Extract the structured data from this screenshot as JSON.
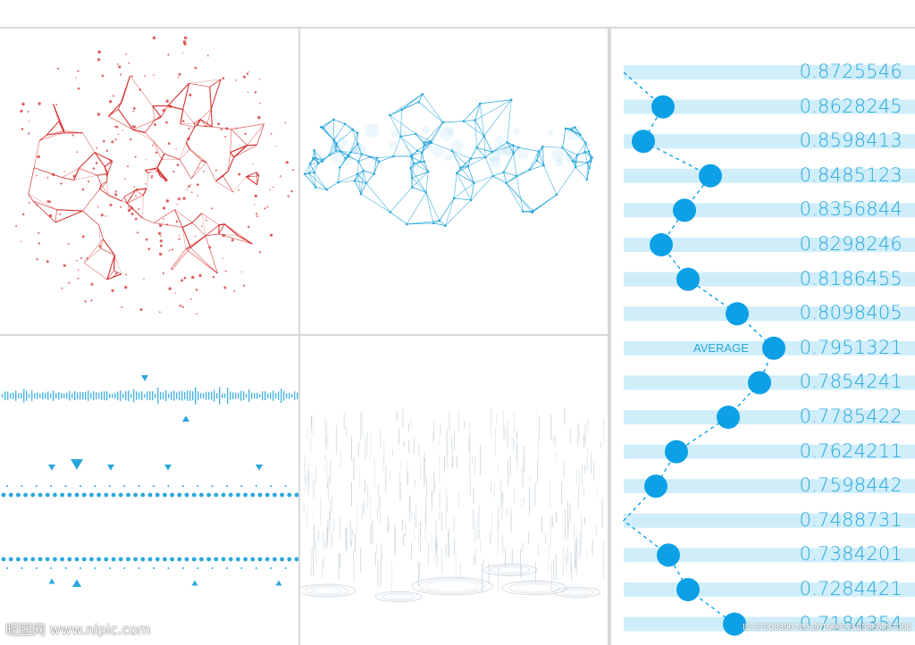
{
  "values": {
    "list": [
      "0.8725546",
      "0.8628245",
      "0.8598413",
      "0.8485123",
      "0.8356844",
      "0.8298246",
      "0.8186455",
      "0.8098405",
      "0.7951321",
      "0.7854241",
      "0.7785422",
      "0.7624211",
      "0.7598442",
      "0.7488731",
      "0.7384201",
      "0.7284421",
      "0.7184354"
    ],
    "average_label": "AVERAGE"
  },
  "watermark": {
    "site": "昵图网 www.nipic.com",
    "id_text": "ID:27008390 NO:20190612165856287000"
  },
  "colors": {
    "red": "#d0201e",
    "cyan": "#2aa7dc",
    "dot": "#0ea0e6",
    "bar": "#cfeefa",
    "rain": "#b7c7d3",
    "divider": "#d8d8d8"
  }
}
